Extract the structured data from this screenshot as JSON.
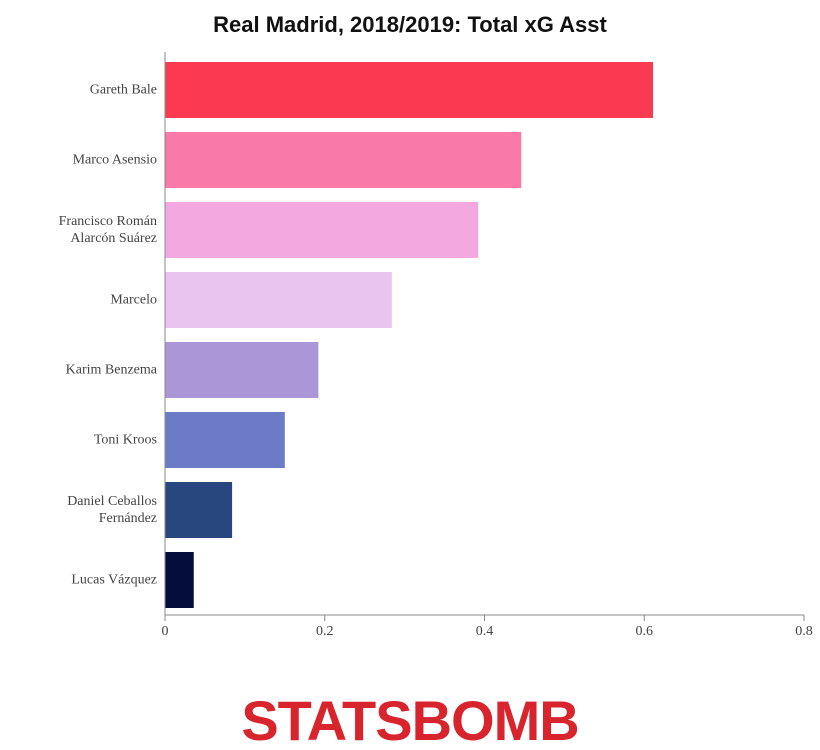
{
  "chart_data": {
    "type": "bar",
    "orientation": "horizontal",
    "title": "Real Madrid, 2018/2019: Total xG Asst",
    "categories": [
      "Gareth Bale",
      "Marco Asensio",
      "Francisco Román Alarcón Suárez",
      "Marcelo",
      "Karim Benzema",
      "Toni Kroos",
      "Daniel Ceballos Fernández",
      "Lucas Vázquez"
    ],
    "values": [
      0.611,
      0.446,
      0.392,
      0.284,
      0.192,
      0.15,
      0.084,
      0.036
    ],
    "colors": [
      "#f93a50",
      "#f97aa8",
      "#f3a9df",
      "#e8c4ee",
      "#ab97d8",
      "#6c7bc7",
      "#27477e",
      "#050d3c"
    ],
    "xlim": [
      0,
      0.8
    ],
    "xticks": [
      0,
      0.2,
      0.4,
      0.6,
      0.8
    ],
    "grid": false
  },
  "logo": "STATSBOMB"
}
